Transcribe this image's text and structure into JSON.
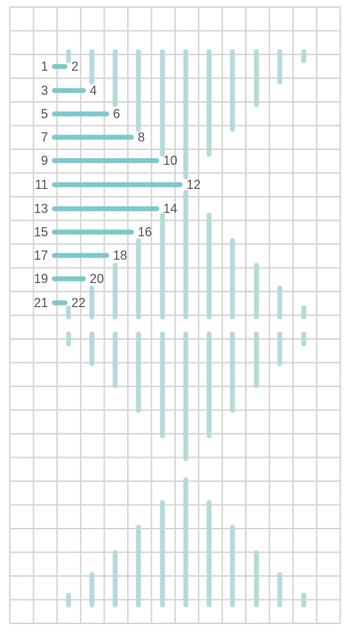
{
  "diagram": {
    "grid": {
      "columns": 14,
      "rows": 26
    },
    "colors": {
      "grid_line": "#d5d5d5",
      "background_stitch": "#b5dada",
      "active_stitch": "#7ec8cb",
      "label_text": "#555555",
      "background": "#ffffff"
    },
    "active_stitches": [
      {
        "start": "1",
        "end": "2"
      },
      {
        "start": "3",
        "end": "4"
      },
      {
        "start": "5",
        "end": "6"
      },
      {
        "start": "7",
        "end": "8"
      },
      {
        "start": "9",
        "end": "10"
      },
      {
        "start": "11",
        "end": "12"
      },
      {
        "start": "13",
        "end": "14"
      },
      {
        "start": "15",
        "end": "16"
      },
      {
        "start": "17",
        "end": "18"
      },
      {
        "start": "19",
        "end": "20"
      },
      {
        "start": "21",
        "end": "22"
      }
    ]
  }
}
